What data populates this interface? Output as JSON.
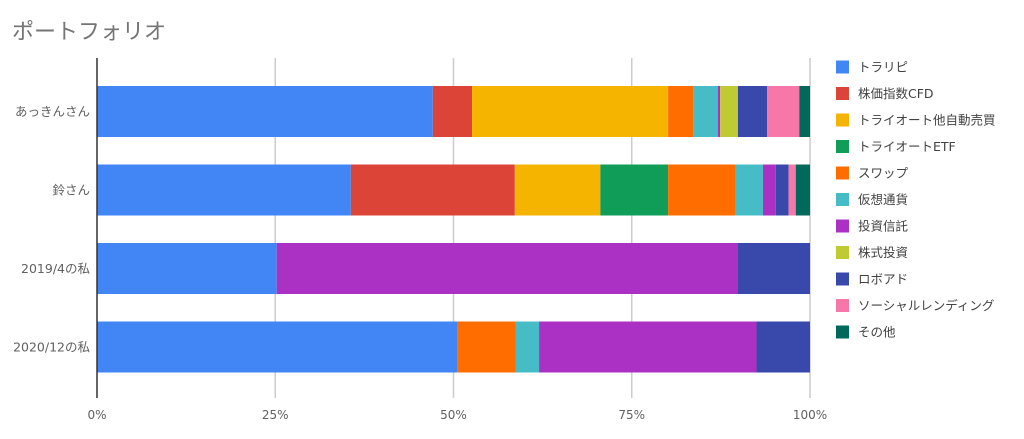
{
  "chart_data": {
    "type": "bar",
    "orientation": "horizontal",
    "stacked": "percent",
    "title": "ポートフォリオ",
    "categories": [
      "あっきんさん",
      "鈴さん",
      "2019/4の私",
      "2020/12の私"
    ],
    "x_ticks": [
      "0%",
      "25%",
      "50%",
      "75%",
      "100%"
    ],
    "xlim": [
      0,
      100
    ],
    "grid": true,
    "legend_position": "right",
    "series": [
      {
        "name": "トラリピ",
        "color": "#4285F4",
        "values": [
          47.1,
          35.6,
          25.2,
          50.5
        ]
      },
      {
        "name": "株価指数CFD",
        "color": "#DB4437",
        "values": [
          5.5,
          23.0,
          0,
          0
        ]
      },
      {
        "name": "トライオート他自動売買",
        "color": "#F4B400",
        "values": [
          27.5,
          12.0,
          0,
          0
        ]
      },
      {
        "name": "トライオートETF",
        "color": "#0F9D58",
        "values": [
          0,
          9.5,
          0,
          0
        ]
      },
      {
        "name": "スワップ",
        "color": "#FF6D01",
        "values": [
          3.5,
          9.5,
          0,
          8.2
        ]
      },
      {
        "name": "仮想通貨",
        "color": "#46BDC6",
        "values": [
          3.5,
          3.8,
          0,
          3.3
        ]
      },
      {
        "name": "投資信託",
        "color": "#AB30C4",
        "values": [
          0.3,
          1.8,
          64.6,
          30.5
        ]
      },
      {
        "name": "株式投資",
        "color": "#C0CA33",
        "values": [
          2.5,
          0,
          0,
          0
        ]
      },
      {
        "name": "ロボアド",
        "color": "#3949AB",
        "values": [
          4.1,
          1.8,
          10.2,
          7.5
        ]
      },
      {
        "name": "ソーシャルレンディング",
        "color": "#F777A8",
        "values": [
          4.5,
          1.0,
          0,
          0
        ]
      },
      {
        "name": "その他",
        "color": "#00695C",
        "values": [
          1.5,
          2.0,
          0,
          0
        ]
      }
    ]
  }
}
